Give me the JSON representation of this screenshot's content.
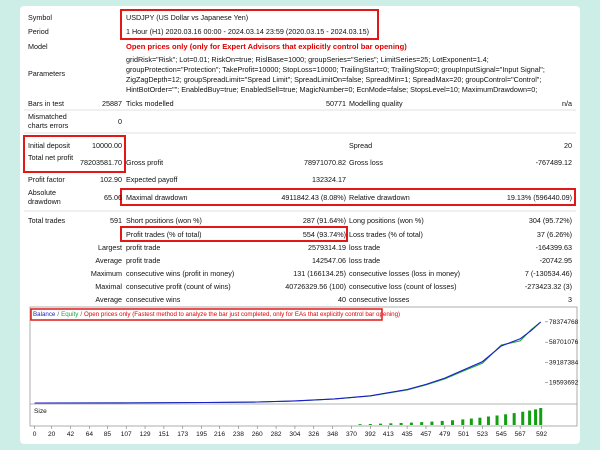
{
  "rows": [
    [
      "Symbol",
      "USDJPY (US Dollar vs Japanese Yen)"
    ],
    [
      "Period",
      "1 Hour (H1) 2020.03.16 00:00 - 2024.03.14 23:59 (2020.03.15 - 2024.03.15)"
    ],
    [
      "Model",
      "Open prices only (only for Expert Advisors that explicitly control bar opening)"
    ],
    [
      "Parameters",
      "gridRisk=\"Risk\"; Lot=0.01; RiskOn=true; RislBase=1000; groupSeries=\"Series\"; LimitSeries=25; LotExponent=1.4;",
      "groupProtection=\"Protection\"; TakeProfit=10000; StopLoss=10000; TrailingStart=0; TrailingStop=0; groupInputSignal=\"Input Signal\";",
      "ZigZagDepth=12; groupSpreadLimit=\"Spread Limit\"; SpreadLimitOn=false; SpreadMin=1; SpreadMax=20; groupControl=\"Control\";",
      "HintBotOrder=\"\"; EnabledBuy=true; EnabledSell=true; MagicNumber=0; EcnMode=false; StopsLevel=10; MaximumDrawdown=0;"
    ],
    [
      "Bars in test",
      "25887",
      "Ticks modelled",
      "50771",
      "Modelling quality",
      "n/a"
    ],
    [
      "Mismatched charts errors",
      "0"
    ],
    [
      "Initial deposit",
      "10000.00",
      "Spread",
      "20"
    ],
    [
      "Total net profit",
      "78203581.70",
      "Gross profit",
      "78971070.82",
      "Gross loss",
      "-767489.12"
    ],
    [
      "Profit factor",
      "102.90",
      "Expected payoff",
      "132324.17"
    ],
    [
      "Absolute drawdown",
      "65.06",
      "Maximal drawdown",
      "4911842.43 (8.08%)",
      "Relative drawdown",
      "19.13% (596440.09)"
    ],
    [
      "Total trades",
      "591",
      "Short positions (won %)",
      "287 (91.64%)",
      "Long positions (won %)",
      "304 (95.72%)"
    ],
    [
      "Profit trades (% of total)",
      "554 (93.74%)",
      "Loss trades (% of total)",
      "37 (6.26%)"
    ],
    [
      "Largest",
      "profit trade",
      "2579314.19",
      "loss trade",
      "-164399.63"
    ],
    [
      "Average",
      "profit trade",
      "142547.06",
      "loss trade",
      "-20742.95"
    ],
    [
      "Maximum",
      "consecutive wins (profit in money)",
      "131 (166134.25)",
      "consecutive losses (loss in money)",
      "7 (-130534.46)"
    ],
    [
      "Maximal",
      "consecutive profit (count of wins)",
      "40726329.56 (100)",
      "consecutive loss (count of losses)",
      "-273423.32 (3)"
    ],
    [
      "Average",
      "consecutive wins",
      "40",
      "consecutive losses",
      "3"
    ]
  ],
  "chart_data": {
    "type": "line",
    "legend": [
      "Balance",
      "/",
      "Equity",
      "/",
      "Open prices only (Fastest method to analyze the bar just completed, only for EAs that explicitly control bar opening)"
    ],
    "x": [
      0,
      100,
      200,
      260,
      304,
      350,
      392,
      435,
      457,
      479,
      501,
      523,
      545,
      567,
      580,
      591
    ],
    "series": [
      {
        "name": "Balance",
        "color": "#1c1cc8",
        "values": [
          10000,
          100000,
          500000,
          1000000,
          2000000,
          4000000,
          7000000,
          13000000,
          18000000,
          24000000,
          32000000,
          40000000,
          55000000,
          62000000,
          70000000,
          78213581.7
        ]
      },
      {
        "name": "Equity",
        "color": "#1aa83a",
        "values": [
          10000,
          100000,
          480000,
          980000,
          1950000,
          3900000,
          6800000,
          12600000,
          17500000,
          23300000,
          31000000,
          38500000,
          56000000,
          60000000,
          71000000,
          78213581.7
        ]
      }
    ],
    "xlim": [
      -3,
      596
    ],
    "ylim": [
      0,
      84000000
    ],
    "xticks": [
      0,
      20,
      42,
      64,
      85,
      107,
      129,
      151,
      173,
      195,
      216,
      238,
      260,
      282,
      304,
      326,
      348,
      370,
      392,
      413,
      435,
      457,
      479,
      501,
      523,
      545,
      567,
      592
    ],
    "yticks": [
      19593692,
      39187384,
      58701076,
      78374768
    ],
    "size_panel": {
      "label": "Size",
      "color": "#12a012",
      "x": [
        380,
        392,
        404,
        416,
        428,
        440,
        452,
        464,
        476,
        488,
        500,
        510,
        520,
        530,
        540,
        550,
        560,
        570,
        578,
        585,
        591
      ],
      "values": [
        0.05,
        0.06,
        0.08,
        0.1,
        0.12,
        0.14,
        0.17,
        0.2,
        0.24,
        0.28,
        0.33,
        0.38,
        0.43,
        0.5,
        0.56,
        0.63,
        0.7,
        0.78,
        0.85,
        0.92,
        1
      ],
      "ylim": [
        0,
        1
      ]
    }
  }
}
